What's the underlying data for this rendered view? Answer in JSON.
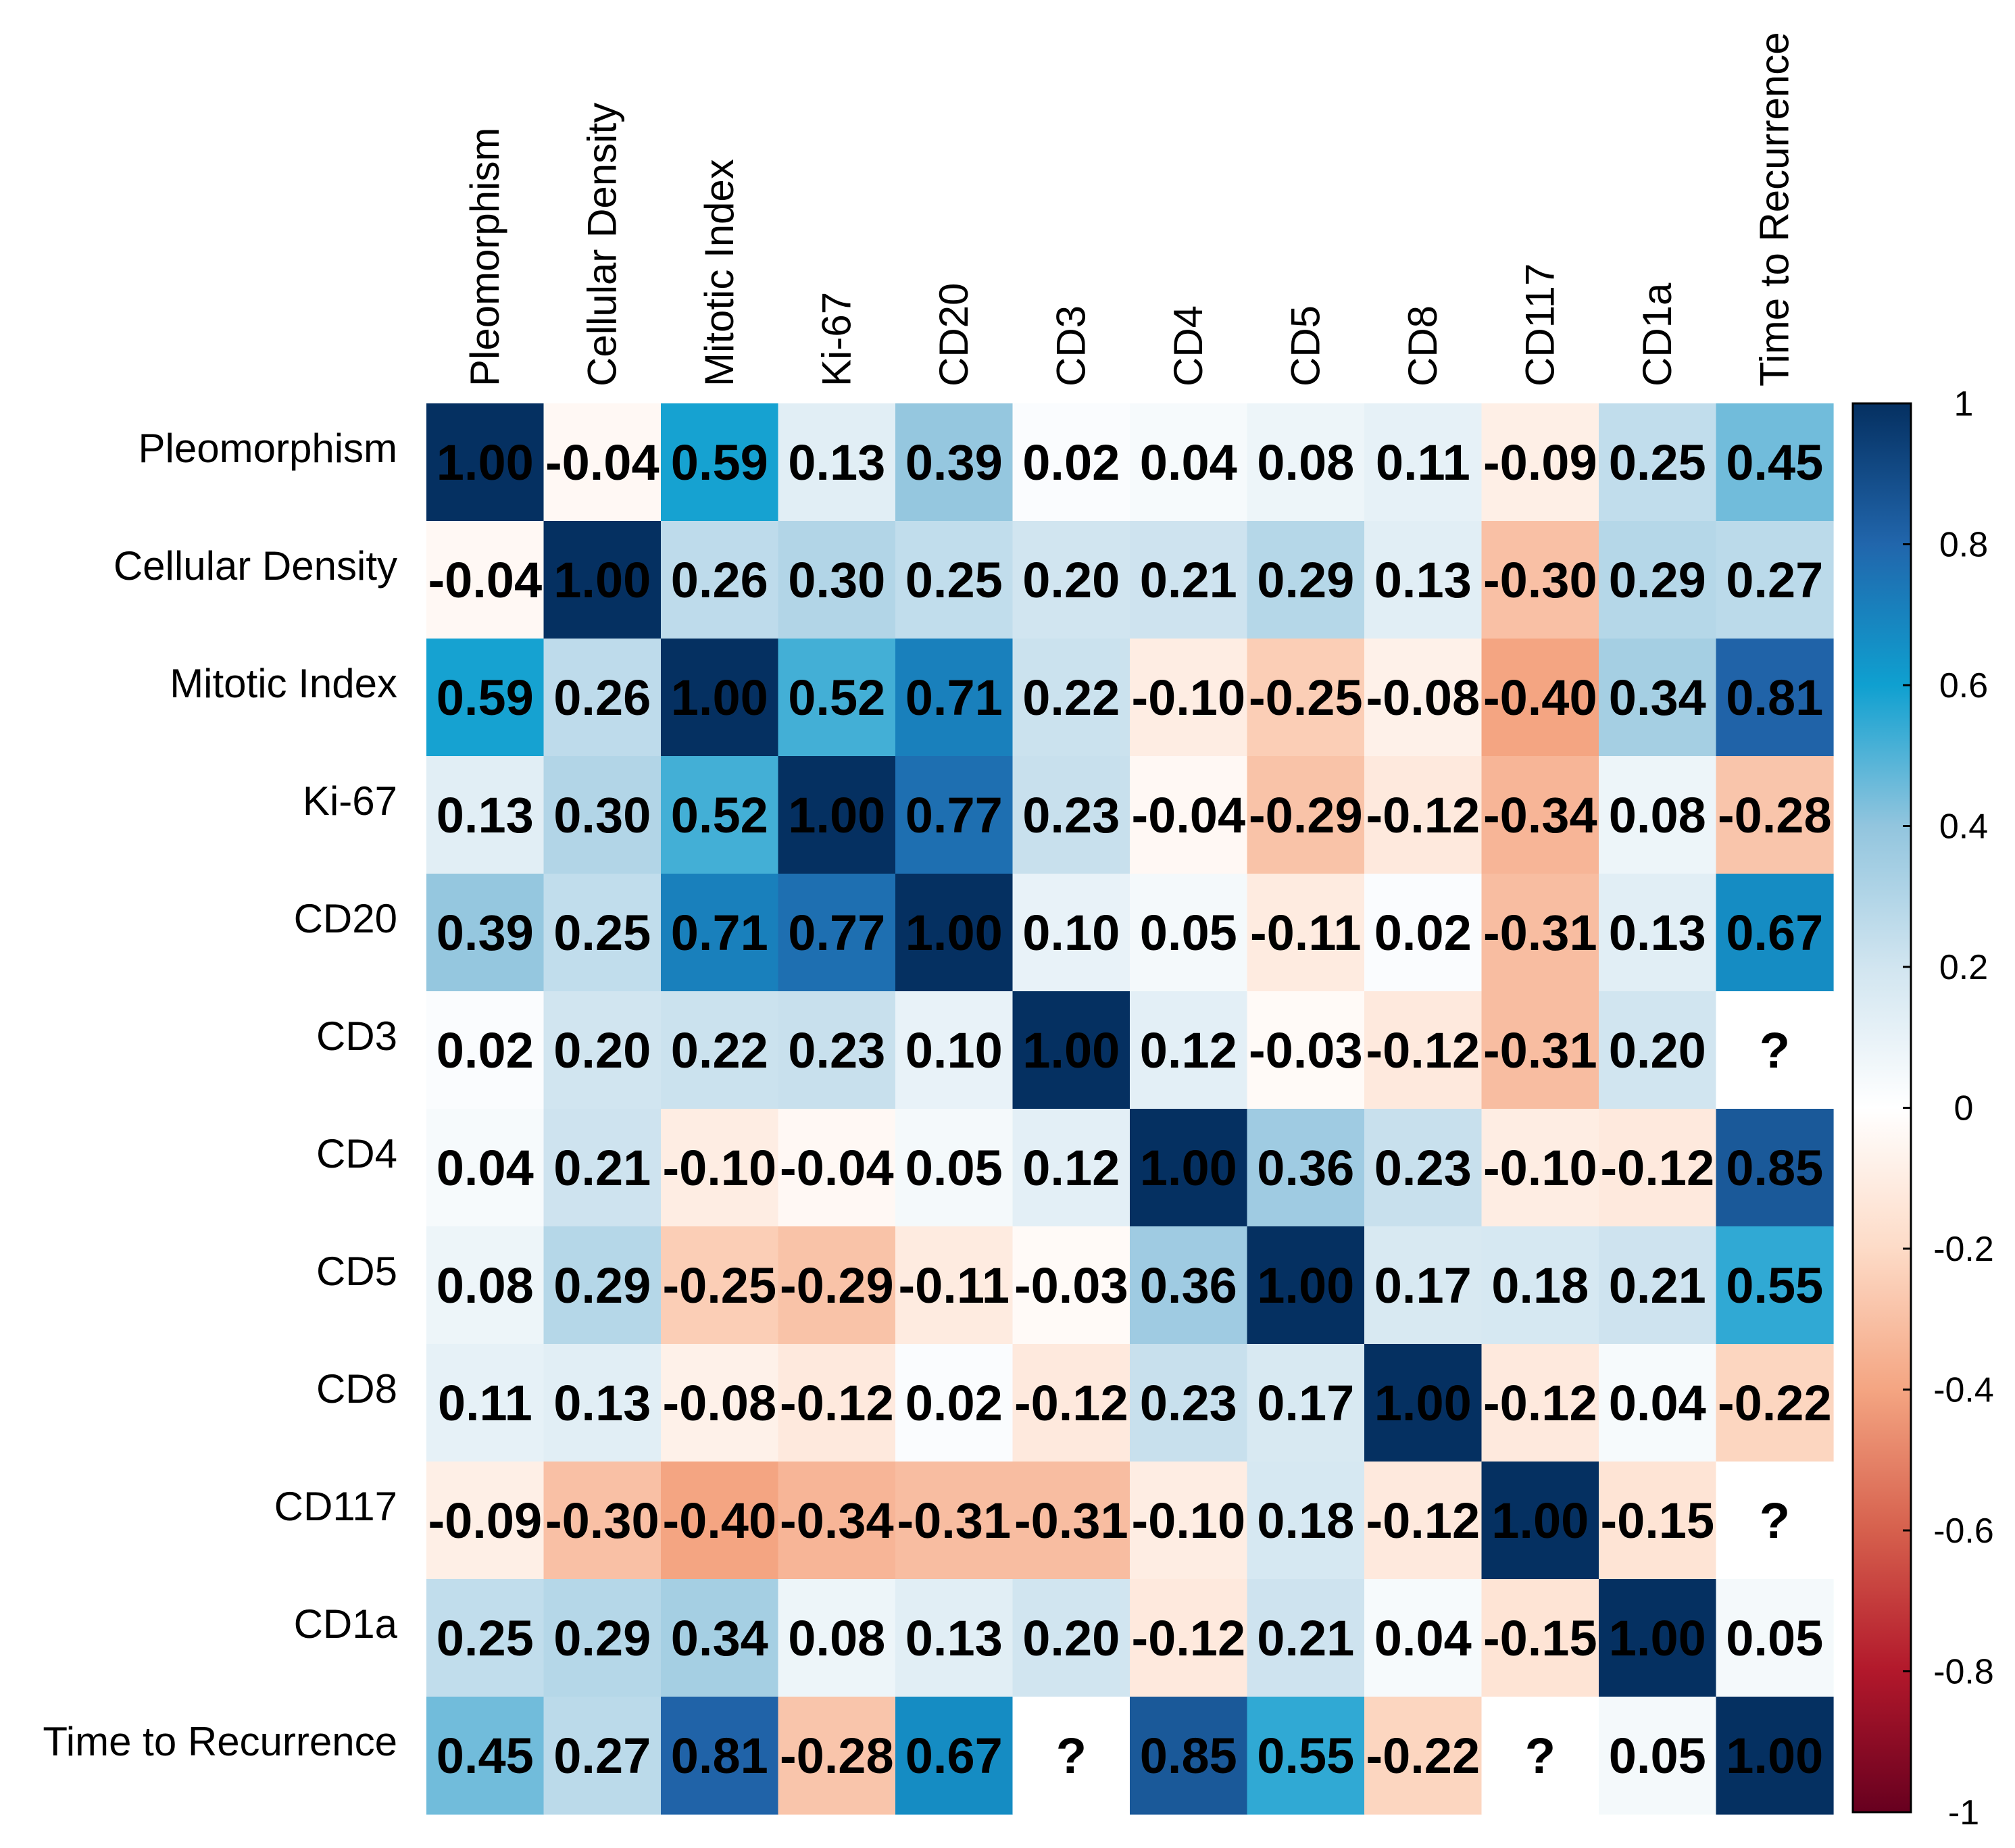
{
  "chart_data": {
    "type": "heatmap",
    "title": "",
    "variables": [
      "Pleomorphism",
      "Cellular Density",
      "Mitotic Index",
      "Ki-67",
      "CD20",
      "CD3",
      "CD4",
      "CD5",
      "CD8",
      "CD117",
      "CD1a",
      "Time to Recurrence"
    ],
    "values": [
      [
        1.0,
        -0.04,
        0.59,
        0.13,
        0.39,
        0.02,
        0.04,
        0.08,
        0.11,
        -0.09,
        0.25,
        0.45
      ],
      [
        -0.04,
        1.0,
        0.26,
        0.3,
        0.25,
        0.2,
        0.21,
        0.29,
        0.13,
        -0.3,
        0.29,
        0.27
      ],
      [
        0.59,
        0.26,
        1.0,
        0.52,
        0.71,
        0.22,
        -0.1,
        -0.25,
        -0.08,
        -0.4,
        0.34,
        0.81
      ],
      [
        0.13,
        0.3,
        0.52,
        1.0,
        0.77,
        0.23,
        -0.04,
        -0.29,
        -0.12,
        -0.34,
        0.08,
        -0.28
      ],
      [
        0.39,
        0.25,
        0.71,
        0.77,
        1.0,
        0.1,
        0.05,
        -0.11,
        0.02,
        -0.31,
        0.13,
        0.67
      ],
      [
        0.02,
        0.2,
        0.22,
        0.23,
        0.1,
        1.0,
        0.12,
        -0.03,
        -0.12,
        -0.31,
        0.2,
        null
      ],
      [
        0.04,
        0.21,
        -0.1,
        -0.04,
        0.05,
        0.12,
        1.0,
        0.36,
        0.23,
        -0.1,
        -0.12,
        0.85
      ],
      [
        0.08,
        0.29,
        -0.25,
        -0.29,
        -0.11,
        -0.03,
        0.36,
        1.0,
        0.17,
        0.18,
        0.21,
        0.55
      ],
      [
        0.11,
        0.13,
        -0.08,
        -0.12,
        0.02,
        -0.12,
        0.23,
        0.17,
        1.0,
        -0.12,
        0.04,
        -0.22
      ],
      [
        -0.09,
        -0.3,
        -0.4,
        -0.34,
        -0.31,
        -0.31,
        -0.1,
        0.18,
        -0.12,
        1.0,
        -0.15,
        null
      ],
      [
        0.25,
        0.29,
        0.34,
        0.08,
        0.13,
        0.2,
        -0.12,
        0.21,
        0.04,
        -0.15,
        1.0,
        0.05
      ],
      [
        0.45,
        0.27,
        0.81,
        -0.28,
        0.67,
        null,
        0.85,
        0.55,
        -0.22,
        null,
        0.05,
        1.0
      ]
    ],
    "cell_labels": [
      [
        "1.00",
        "-0.04",
        "0.59",
        "0.13",
        "0.39",
        "0.02",
        "0.04",
        "0.08",
        "0.11",
        "-0.09",
        "0.25",
        "0.45"
      ],
      [
        "-0.04",
        "1.00",
        "0.26",
        "0.30",
        "0.25",
        "0.20",
        "0.21",
        "0.29",
        "0.13",
        "-0.30",
        "0.29",
        "0.27"
      ],
      [
        "0.59",
        "0.26",
        "1.00",
        "0.52",
        "0.71",
        "0.22",
        "-0.10",
        "-0.25",
        "-0.08",
        "-0.40",
        "0.34",
        "0.81"
      ],
      [
        "0.13",
        "0.30",
        "0.52",
        "1.00",
        "0.77",
        "0.23",
        "-0.04",
        "-0.29",
        "-0.12",
        "-0.34",
        "0.08",
        "-0.28"
      ],
      [
        "0.39",
        "0.25",
        "0.71",
        "0.77",
        "1.00",
        "0.10",
        "0.05",
        "-0.11",
        "0.02",
        "-0.31",
        "0.13",
        "0.67"
      ],
      [
        "0.02",
        "0.20",
        "0.22",
        "0.23",
        "0.10",
        "1.00",
        "0.12",
        "-0.03",
        "-0.12",
        "-0.31",
        "0.20",
        "?"
      ],
      [
        "0.04",
        "0.21",
        "-0.10",
        "-0.04",
        "0.05",
        "0.12",
        "1.00",
        "0.36",
        "0.23",
        "-0.10",
        "-0.12",
        "0.85"
      ],
      [
        "0.08",
        "0.29",
        "-0.25",
        "-0.29",
        "-0.11",
        "-0.03",
        "0.36",
        "1.00",
        "0.17",
        "0.18",
        "0.21",
        "0.55"
      ],
      [
        "0.11",
        "0.13",
        "-0.08",
        "-0.12",
        "0.02",
        "-0.12",
        "0.23",
        "0.17",
        "1.00",
        "-0.12",
        "0.04",
        "-0.22"
      ],
      [
        "-0.09",
        "-0.30",
        "-0.40",
        "-0.34",
        "-0.31",
        "-0.31",
        "-0.10",
        "0.18",
        "-0.12",
        "1.00",
        "-0.15",
        "?"
      ],
      [
        "0.25",
        "0.29",
        "0.34",
        "0.08",
        "0.13",
        "0.20",
        "-0.12",
        "0.21",
        "0.04",
        "-0.15",
        "1.00",
        "0.05"
      ],
      [
        "0.45",
        "0.27",
        "0.81",
        "-0.28",
        "0.67",
        "?",
        "0.85",
        "0.55",
        "-0.22",
        "?",
        "0.05",
        "1.00"
      ]
    ],
    "colorbar": {
      "ticks": [
        "1",
        "0.8",
        "0.6",
        "0.4",
        "0.2",
        "0",
        "-0.2",
        "-0.4",
        "-0.6",
        "-0.8",
        "-1"
      ],
      "range": [
        -1,
        1
      ],
      "colors": {
        "neg1": "#67001f",
        "neg08": "#b2182b",
        "neg06": "#d6604d",
        "neg04": "#f4a582",
        "neg02": "#fddbc7",
        "zero": "#ffffff",
        "pos02": "#d1e5f0",
        "pos04": "#92c5de",
        "pos06": "#0fa0d0",
        "pos08": "#2166ac",
        "pos1": "#053061"
      }
    },
    "legend_position": "right"
  }
}
